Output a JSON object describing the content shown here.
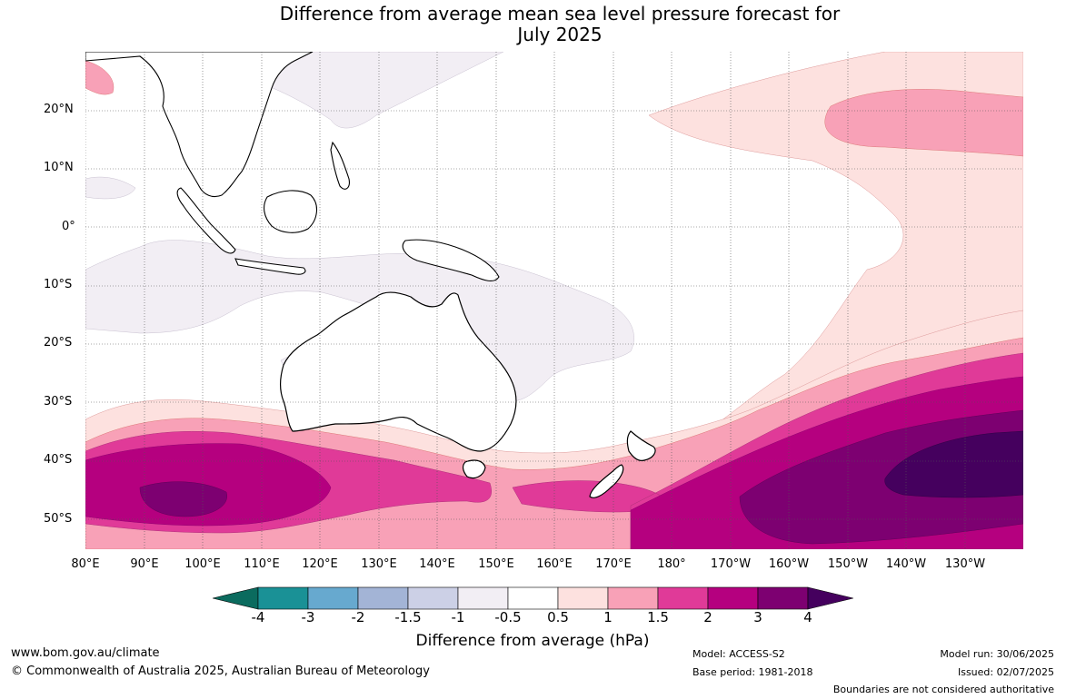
{
  "title_line1": "Difference from average mean sea level pressure forecast for",
  "title_line2": "July 2025",
  "latitude_labels": [
    "20°N",
    "10°N",
    "0°",
    "10°S",
    "20°S",
    "30°S",
    "40°S",
    "50°S"
  ],
  "longitude_labels": [
    "80°E",
    "90°E",
    "100°E",
    "110°E",
    "120°E",
    "130°E",
    "140°E",
    "150°E",
    "160°E",
    "170°E",
    "180°",
    "170°W",
    "160°W",
    "150°W",
    "140°W",
    "130°W"
  ],
  "colorbar": {
    "ticks": [
      "-4",
      "-3",
      "-2",
      "-1.5",
      "-1",
      "-0.5",
      "0.5",
      "1",
      "1.5",
      "2",
      "3",
      "4"
    ],
    "colors": [
      "#0b6b5e",
      "#1a9196",
      "#67a9cf",
      "#a3b4d6",
      "#ccd0e6",
      "#f2eef4",
      "#ffffff",
      "#fde1df",
      "#f8a1b7",
      "#e03a98",
      "#b5007f",
      "#7d0071",
      "#45005e"
    ],
    "title": "Difference from average (hPa)"
  },
  "footer": {
    "website": "www.bom.gov.au/climate",
    "copyright": "© Commonwealth of Australia 2025, Australian Bureau of Meteorology",
    "model": "Model: ACCESS-S2",
    "base_period": "Base period: 1981-2018",
    "model_run": "Model run: 30/06/2025",
    "issued": "Issued: 02/07/2025",
    "disclaimer": "Boundaries are not considered authoritative"
  }
}
